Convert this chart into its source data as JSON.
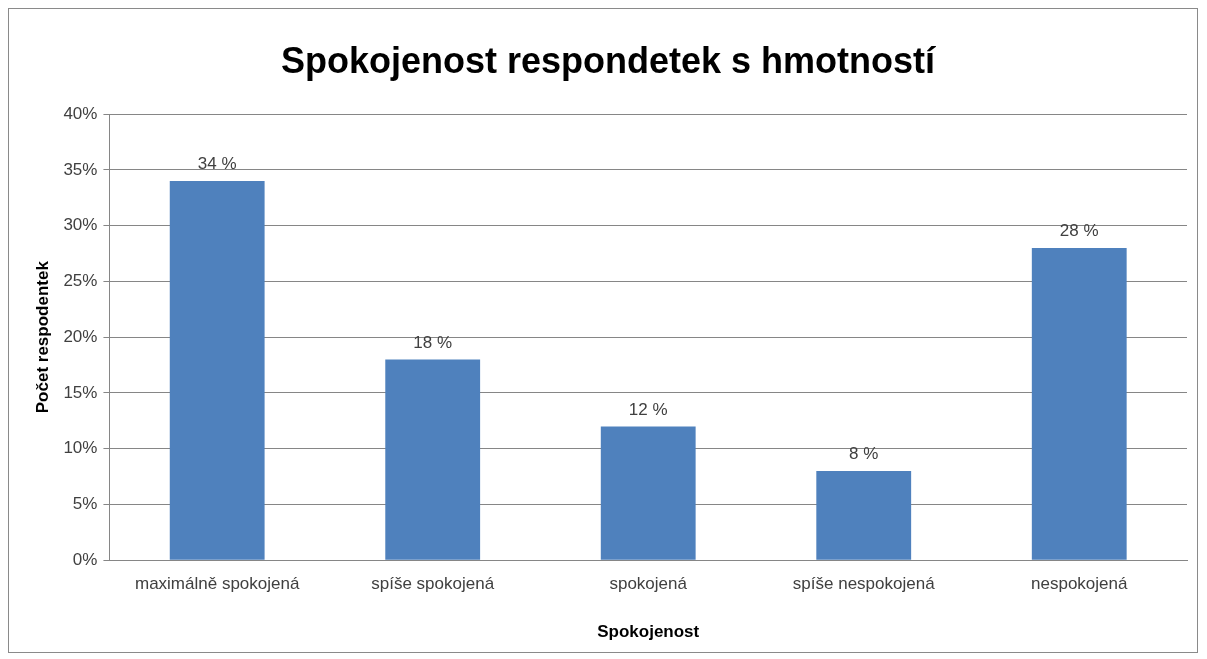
{
  "chart_data": {
    "type": "bar",
    "title": "Spokojenost respondetek s hmotností",
    "xlabel": "Spokojenost",
    "ylabel": "Počet respodentek",
    "categories": [
      "maximálně spokojená",
      "spíše spokojená",
      "spokojená",
      "spíše nespokojená",
      "nespokojená"
    ],
    "values": [
      34,
      18,
      12,
      8,
      28
    ],
    "value_labels": [
      "34 %",
      "18 %",
      "12 %",
      "8 %",
      "28 %"
    ],
    "color": "#4f81bd",
    "ylim": [
      0,
      40
    ],
    "yticks": [
      {
        "value": 0,
        "label": "0%"
      },
      {
        "value": 5,
        "label": "5%"
      },
      {
        "value": 10,
        "label": "10%"
      },
      {
        "value": 15,
        "label": "15%"
      },
      {
        "value": 20,
        "label": "20%"
      },
      {
        "value": 25,
        "label": "25%"
      },
      {
        "value": 30,
        "label": "30%"
      },
      {
        "value": 35,
        "label": "35%"
      },
      {
        "value": 40,
        "label": "40%"
      }
    ],
    "grid": "y",
    "legend": false
  }
}
